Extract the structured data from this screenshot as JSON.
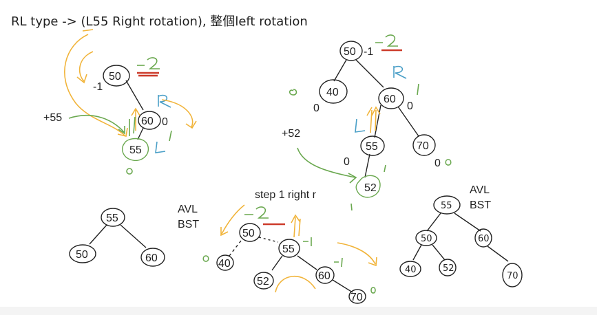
{
  "title": "RL type   -> (L55 Right rotation), 整個left rotation",
  "labels": {
    "plus55": "+55",
    "plus52": "+52",
    "step1": "step 1 right r",
    "avl1_line1": "AVL",
    "avl1_line2": "BST",
    "avl2_line1": "AVL",
    "avl2_line2": "BST"
  },
  "trees": {
    "tree1": {
      "root": "50",
      "mid": "60",
      "leaf": "55",
      "bf_root": "-1",
      "bf_mid": "0",
      "bf_root_green": "-2",
      "dir": "R",
      "dir_leaf": "L"
    },
    "tree2": {
      "root": "50",
      "left": "40",
      "right": "60",
      "rl": "55",
      "rr": "70",
      "new": "52",
      "bf_root": "-1",
      "bf_root_green": "-2",
      "bf_left": "0",
      "bf_right": "0",
      "bf_rl": "0",
      "bf_rr": "0",
      "dir": "R",
      "dir_mid": "L"
    },
    "tree3": {
      "root": "55",
      "left": "50",
      "right": "60"
    },
    "tree4": {
      "root": "50",
      "left": "40",
      "right": "55",
      "rl": "52",
      "rr": "60",
      "rrr": "70",
      "bf_root_green": "-2",
      "bf_right": "-1",
      "bf_rr": "-1",
      "bf_left": "0"
    },
    "tree5": {
      "root": "55",
      "left": "50",
      "right": "60",
      "ll": "40",
      "lr": "52",
      "rr": "70"
    }
  },
  "colors": {
    "ink": "#222222",
    "green": "#6aa84f",
    "red": "#cc3b2a",
    "blue": "#4a9fc7",
    "orange": "#f1b43a"
  }
}
